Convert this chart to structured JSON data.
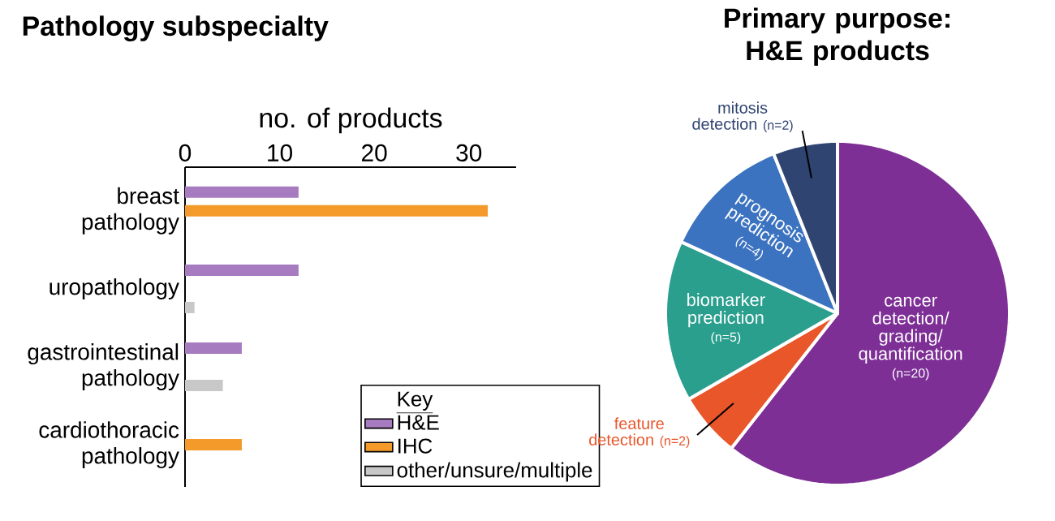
{
  "chart_data": [
    {
      "type": "bar",
      "orientation": "horizontal",
      "title": "Pathology subspecialty",
      "xlabel": "no. of products",
      "categories": [
        "breast pathology",
        "uropathology",
        "gastrointestinal pathology",
        "cardiothoracic pathology"
      ],
      "xlim": [
        0,
        35
      ],
      "xticks": [
        0,
        10,
        20,
        30
      ],
      "legend": "bottom right",
      "legend_title": "Key",
      "series": [
        {
          "name": "H&E",
          "color": "#a77bbf",
          "values": [
            12,
            12,
            6,
            null
          ]
        },
        {
          "name": "IHC",
          "color": "#f39a2a",
          "values": [
            32,
            null,
            null,
            6
          ]
        },
        {
          "name": "other/unsure/multiple",
          "color": "#c8c8c8",
          "values": [
            null,
            1,
            4,
            null
          ]
        }
      ]
    },
    {
      "type": "pie",
      "title": "Primary purpose: H&E products",
      "categories": [
        "cancer detection/ grading/ quantification",
        "feature detection",
        "biomarker prediction",
        "prognosis prediction",
        "mitosis detection"
      ],
      "values": [
        20,
        2,
        5,
        4,
        2
      ],
      "colors": [
        "#7d2f96",
        "#e8562a",
        "#2a9f8e",
        "#3c73c0",
        "#2f4470"
      ],
      "value_labels": [
        "(n=20)",
        "(n=2)",
        "(n=5)",
        "(n=4)",
        "(n=2)"
      ]
    }
  ]
}
